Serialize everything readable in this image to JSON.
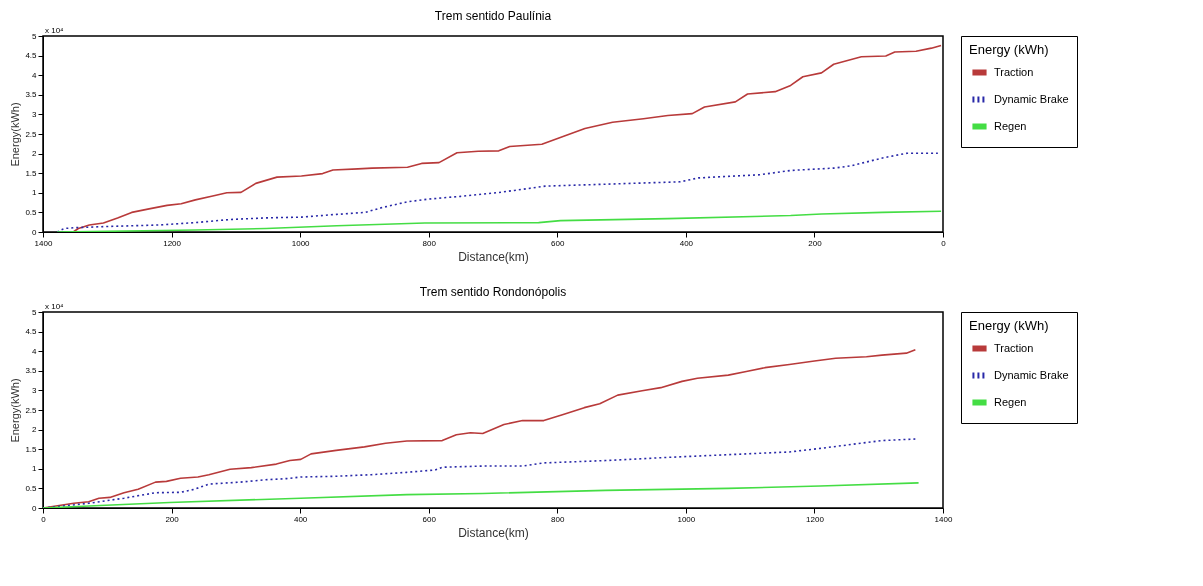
{
  "chart_data": [
    {
      "type": "line",
      "title": "Trem sentido Paulínia",
      "xlabel": "Distance(km)",
      "ylabel": "Energy(kWh)",
      "legend_title": "Energy (kWh)",
      "legend": "right",
      "annotations": [
        "x 10⁴"
      ],
      "xlim": [
        1400,
        0
      ],
      "xticks": [
        1400,
        1200,
        1000,
        800,
        600,
        400,
        200,
        0
      ],
      "ylim": [
        0,
        5
      ],
      "yticks": [
        0,
        0.5,
        1,
        1.5,
        2,
        2.5,
        3,
        3.5,
        4,
        4.5,
        5
      ],
      "series": [
        {
          "name": "Traction",
          "color": "#b83a3a",
          "line_style": "solid",
          "x": [
            1353,
            1345,
            1328,
            1306,
            1284,
            1262,
            1235,
            1207,
            1185,
            1163,
            1136,
            1114,
            1092,
            1069,
            1036,
            998,
            965,
            949,
            910,
            888,
            833,
            811,
            784,
            756,
            723,
            691,
            674,
            624,
            590,
            557,
            514,
            466,
            428,
            390,
            371,
            323,
            304,
            261,
            237,
            218,
            189,
            170,
            127,
            89,
            75,
            42,
            18,
            3
          ],
          "values": [
            0,
            0.09,
            0.18,
            0.23,
            0.36,
            0.5,
            0.59,
            0.68,
            0.72,
            0.82,
            0.92,
            1.0,
            1.01,
            1.24,
            1.4,
            1.43,
            1.49,
            1.58,
            1.61,
            1.63,
            1.65,
            1.75,
            1.77,
            2.02,
            2.06,
            2.07,
            2.18,
            2.24,
            2.44,
            2.64,
            2.8,
            2.89,
            2.97,
            3.02,
            3.19,
            3.32,
            3.52,
            3.58,
            3.74,
            3.96,
            4.06,
            4.28,
            4.47,
            4.49,
            4.59,
            4.61,
            4.69,
            4.76
          ]
        },
        {
          "name": "Dynamic Brake",
          "color": "#2828a8",
          "line_style": "dotted",
          "x": [
            1378,
            1367,
            1350,
            1301,
            1218,
            1163,
            1108,
            1053,
            998,
            943,
            899,
            871,
            833,
            800,
            750,
            695,
            667,
            619,
            524,
            409,
            380,
            285,
            237,
            170,
            142,
            94,
            56,
            8
          ],
          "values": [
            0,
            0.09,
            0.11,
            0.14,
            0.18,
            0.24,
            0.32,
            0.36,
            0.38,
            0.45,
            0.5,
            0.63,
            0.77,
            0.84,
            0.91,
            1.0,
            1.06,
            1.17,
            1.22,
            1.28,
            1.38,
            1.46,
            1.57,
            1.63,
            1.69,
            1.89,
            2.01,
            2.01
          ]
        },
        {
          "name": "Regen",
          "color": "#44dd44",
          "line_style": "solid",
          "x": [
            1378,
            1163,
            1053,
            943,
            806,
            629,
            595,
            428,
            237,
            189,
            94,
            3
          ],
          "values": [
            0,
            0.05,
            0.09,
            0.16,
            0.23,
            0.24,
            0.29,
            0.34,
            0.42,
            0.46,
            0.5,
            0.53
          ]
        }
      ]
    },
    {
      "type": "line",
      "title": "Trem sentido Rondonópolis",
      "xlabel": "Distance(km)",
      "ylabel": "Energy(kWh)",
      "legend_title": "Energy (kWh)",
      "legend": "right",
      "annotations": [
        "x 10⁴"
      ],
      "xlim": [
        0,
        1400
      ],
      "xticks": [
        0,
        200,
        400,
        600,
        800,
        1000,
        1200,
        1400
      ],
      "ylim": [
        0,
        5
      ],
      "yticks": [
        0,
        0.5,
        1,
        1.5,
        2,
        2.5,
        3,
        3.5,
        4,
        4.5,
        5
      ],
      "series": [
        {
          "name": "Traction",
          "color": "#b83a3a",
          "line_style": "solid",
          "x": [
            0,
            15,
            48,
            71,
            87,
            104,
            126,
            148,
            175,
            192,
            214,
            241,
            258,
            291,
            324,
            363,
            384,
            401,
            417,
            456,
            500,
            533,
            566,
            621,
            643,
            665,
            684,
            717,
            746,
            779,
            808,
            842,
            866,
            894,
            932,
            961,
            994,
            1018,
            1066,
            1094,
            1123,
            1161,
            1200,
            1233,
            1281,
            1305,
            1343,
            1357
          ],
          "values": [
            0,
            0.04,
            0.12,
            0.16,
            0.25,
            0.27,
            0.39,
            0.48,
            0.66,
            0.68,
            0.76,
            0.79,
            0.85,
            0.99,
            1.03,
            1.12,
            1.21,
            1.24,
            1.38,
            1.47,
            1.56,
            1.65,
            1.71,
            1.72,
            1.87,
            1.92,
            1.9,
            2.13,
            2.23,
            2.23,
            2.38,
            2.56,
            2.66,
            2.88,
            2.99,
            3.07,
            3.23,
            3.31,
            3.39,
            3.48,
            3.58,
            3.66,
            3.75,
            3.82,
            3.86,
            3.9,
            3.95,
            4.04
          ]
        },
        {
          "name": "Dynamic Brake",
          "color": "#2828a8",
          "line_style": "dotted",
          "x": [
            0,
            71,
            126,
            175,
            214,
            236,
            258,
            307,
            346,
            379,
            401,
            456,
            511,
            566,
            610,
            621,
            684,
            746,
            779,
            875,
            923,
            970,
            1066,
            1161,
            1209,
            1257,
            1305,
            1357
          ],
          "values": [
            0,
            0.12,
            0.25,
            0.39,
            0.4,
            0.48,
            0.61,
            0.66,
            0.72,
            0.75,
            0.79,
            0.81,
            0.85,
            0.91,
            0.97,
            1.04,
            1.07,
            1.07,
            1.15,
            1.21,
            1.25,
            1.29,
            1.36,
            1.43,
            1.52,
            1.62,
            1.72,
            1.76
          ]
        },
        {
          "name": "Regen",
          "color": "#44dd44",
          "line_style": "solid",
          "x": [
            0,
            98,
            197,
            401,
            566,
            684,
            875,
            1066,
            1209,
            1362
          ],
          "values": [
            0,
            0.07,
            0.14,
            0.25,
            0.34,
            0.37,
            0.45,
            0.5,
            0.56,
            0.64
          ]
        }
      ]
    }
  ]
}
